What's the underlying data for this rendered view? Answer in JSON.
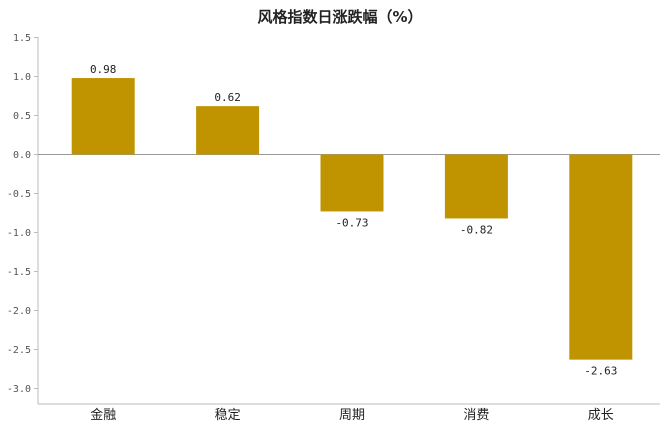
{
  "chart_data": {
    "type": "bar",
    "title": "风格指数日涨跌幅（%）",
    "categories": [
      "金融",
      "稳定",
      "周期",
      "消费",
      "成长"
    ],
    "values": [
      0.98,
      0.62,
      -0.73,
      -0.82,
      -2.63
    ],
    "value_labels": [
      "0.98",
      "0.62",
      "-0.73",
      "-0.82",
      "-2.63"
    ],
    "ylim": [
      -3.2,
      1.5
    ],
    "yticks": [
      1.5,
      1.0,
      0.5,
      0.0,
      -0.5,
      -1.0,
      -1.5,
      -2.0,
      -2.5,
      -3.0
    ],
    "ytick_labels": [
      "1.5",
      "1.0",
      "0.5",
      "0.0",
      "-0.5",
      "-1.0",
      "-1.5",
      "-2.0",
      "-2.5",
      "-3.0"
    ],
    "grid": false,
    "bar_color": "#c09400",
    "axis_color": "#bbbbbb"
  }
}
